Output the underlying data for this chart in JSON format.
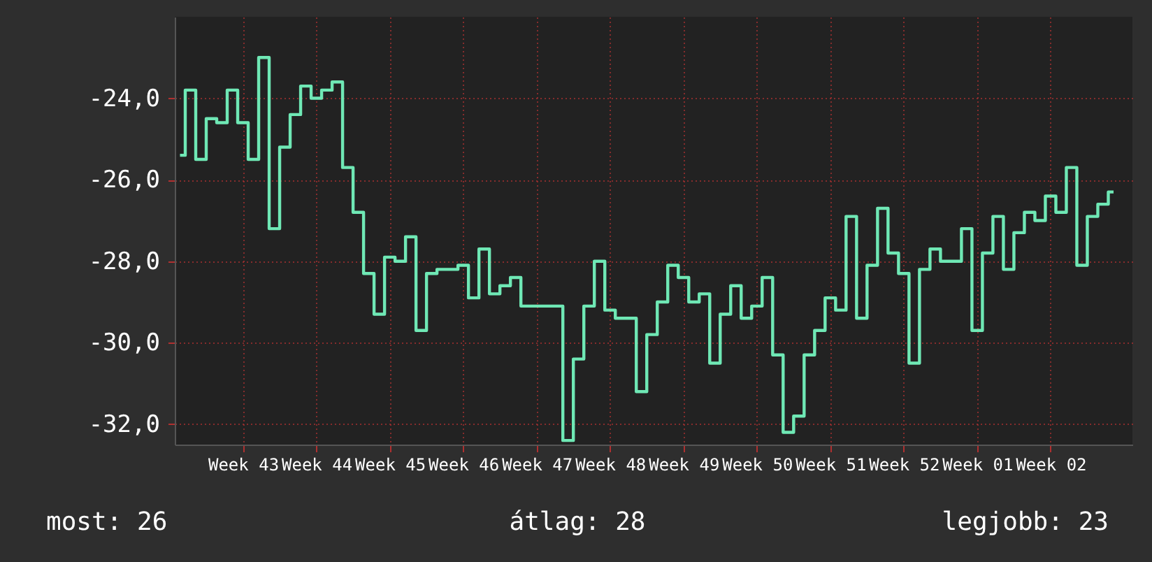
{
  "chart_data": {
    "type": "step",
    "categories": [
      null,
      null,
      null,
      null,
      null,
      null,
      "Week 43",
      null,
      null,
      null,
      null,
      null,
      null,
      "Week 44",
      null,
      null,
      null,
      null,
      null,
      null,
      "Week 45",
      null,
      null,
      null,
      null,
      null,
      null,
      "Week 46",
      null,
      null,
      null,
      null,
      null,
      null,
      "Week 47",
      null,
      null,
      null,
      null,
      null,
      null,
      "Week 48",
      null,
      null,
      null,
      null,
      null,
      null,
      "Week 49",
      null,
      null,
      null,
      null,
      null,
      null,
      "Week 50",
      null,
      null,
      null,
      null,
      null,
      null,
      "Week 51",
      null,
      null,
      null,
      null,
      null,
      null,
      "Week 52",
      null,
      null,
      null,
      null,
      null,
      null,
      "Week 01",
      null,
      null,
      null,
      null,
      null,
      null,
      "Week 02",
      null,
      null,
      null,
      null,
      null,
      null
    ],
    "series": [
      {
        "color": "#6fe8b5",
        "values": [
          -25.4,
          -23.8,
          -25.5,
          -24.5,
          -24.6,
          -23.8,
          -24.6,
          -25.5,
          -23.0,
          -27.2,
          -25.2,
          -24.4,
          -23.7,
          -24.0,
          -23.8,
          -23.6,
          -25.7,
          -26.8,
          -28.3,
          -29.3,
          -27.9,
          -28.0,
          -27.4,
          -29.7,
          -28.3,
          -28.2,
          -28.2,
          -28.1,
          -28.9,
          -27.7,
          -28.8,
          -28.6,
          -28.4,
          -29.1,
          -29.1,
          -29.1,
          -29.1,
          -32.4,
          -30.4,
          -29.1,
          -28.0,
          -29.2,
          -29.4,
          -29.4,
          -31.2,
          -29.8,
          -29.0,
          -28.1,
          -28.4,
          -29.0,
          -28.8,
          -30.5,
          -29.3,
          -28.6,
          -29.4,
          -29.1,
          -28.4,
          -30.3,
          -32.2,
          -31.8,
          -30.3,
          -29.7,
          -28.9,
          -29.2,
          -26.9,
          -29.4,
          -28.1,
          -26.7,
          -27.8,
          -28.3,
          -30.5,
          -28.2,
          -27.7,
          -28.0,
          -28.0,
          -27.2,
          -29.7,
          -27.8,
          -26.9,
          -28.2,
          -27.3,
          -26.8,
          -27.0,
          -26.4,
          -26.8,
          -25.7,
          -28.1,
          -26.9,
          -26.6,
          -26.3
        ]
      }
    ],
    "ylim": [
      -32.5,
      -22
    ],
    "yticks": [
      {
        "value": -32,
        "label": "-32,0"
      },
      {
        "value": -30,
        "label": "-30,0"
      },
      {
        "value": -28,
        "label": "-28,0"
      },
      {
        "value": -26,
        "label": "-26,0"
      },
      {
        "value": -24,
        "label": "-24,0"
      }
    ],
    "grid": true,
    "annotations": [
      "most: 26",
      "átlag: 28",
      "legjobb: 23"
    ]
  }
}
